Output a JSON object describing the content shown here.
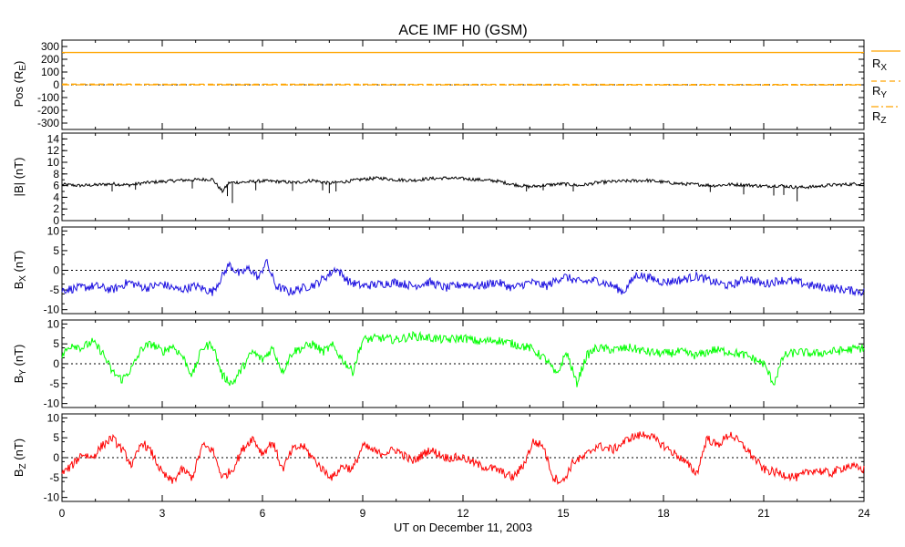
{
  "title": "ACE IMF H0 (GSM)",
  "xlabel": "UT on December 11, 2003",
  "x_ticks": [
    "0",
    "3",
    "6",
    "9",
    "12",
    "15",
    "18",
    "21",
    "24"
  ],
  "xlim": [
    0,
    24
  ],
  "chart_data": [
    {
      "type": "line",
      "panel": "pos",
      "ylabel_main": "Pos (R",
      "ylabel_sub": "E",
      "ylabel_tail": ")",
      "ylim": [
        -350,
        350
      ],
      "y_ticks": [
        "-300",
        "-200",
        "-100",
        "0",
        "100",
        "200",
        "300"
      ],
      "y_tick_values": [
        -300,
        -200,
        -100,
        0,
        100,
        200,
        300
      ],
      "zero_line": true,
      "series": [
        {
          "name": "RX",
          "label_main": "R",
          "label_sub": "X",
          "style": "solid",
          "color": "#ffa500",
          "x": [
            0,
            24
          ],
          "y": [
            253,
            253
          ]
        },
        {
          "name": "RY",
          "label_main": "R",
          "label_sub": "Y",
          "style": "dashed",
          "color": "#ffa500",
          "x": [
            0,
            24
          ],
          "y": [
            5,
            2
          ]
        },
        {
          "name": "RZ",
          "label_main": "R",
          "label_sub": "Z",
          "style": "dashdot",
          "color": "#ffa500",
          "x": [
            0,
            24
          ],
          "y": [
            0,
            -2
          ]
        }
      ]
    },
    {
      "type": "line",
      "panel": "bt",
      "ylabel_main": "|B| (nT)",
      "ylim": [
        0,
        15
      ],
      "y_ticks": [
        "0",
        "2",
        "4",
        "6",
        "8",
        "10",
        "12",
        "14"
      ],
      "y_tick_values": [
        0,
        2,
        4,
        6,
        8,
        10,
        12,
        14
      ],
      "zero_line": false,
      "color": "#000000",
      "x": [
        0,
        0.5,
        1,
        1.5,
        2,
        2.5,
        3,
        3.5,
        4,
        4.5,
        4.8,
        5,
        5.5,
        6,
        6.5,
        7,
        7.5,
        8,
        8.5,
        9,
        9.5,
        10,
        10.5,
        11,
        11.5,
        12,
        12.5,
        13,
        13.5,
        14,
        14.5,
        15,
        15.5,
        16,
        16.5,
        17,
        17.5,
        18,
        18.5,
        19,
        19.5,
        20,
        20.5,
        21,
        21.5,
        22,
        22.5,
        23,
        23.5,
        24
      ],
      "y": [
        6.2,
        6.0,
        6.1,
        6.3,
        6.1,
        6.5,
        6.7,
        6.9,
        7.0,
        7.1,
        5.0,
        6.5,
        6.6,
        6.8,
        6.7,
        6.5,
        6.9,
        6.4,
        6.7,
        7.1,
        7.3,
        7.0,
        6.9,
        7.2,
        7.3,
        7.2,
        7.0,
        6.8,
        6.2,
        5.8,
        6.1,
        6.3,
        6.0,
        6.5,
        6.7,
        6.8,
        6.9,
        6.6,
        6.3,
        6.2,
        6.0,
        6.2,
        6.1,
        5.9,
        6.0,
        5.7,
        5.8,
        6.1,
        6.2,
        6.4
      ],
      "spikes_x": [
        1.5,
        2.2,
        3.9,
        4.95,
        5.1,
        5.8,
        6.9,
        7.8,
        8.0,
        8.2,
        13.9,
        14.4,
        15.3,
        19.4,
        20.4,
        21.3,
        21.6,
        22.0
      ],
      "spikes_y": [
        5.0,
        5.3,
        5.5,
        4.2,
        3.0,
        5.2,
        5.1,
        5.2,
        4.7,
        5.0,
        5.0,
        5.2,
        5.0,
        4.9,
        4.5,
        4.3,
        4.4,
        3.3
      ]
    },
    {
      "type": "line",
      "panel": "bx",
      "ylabel_main": "B",
      "ylabel_sub": "X",
      "ylabel_tail": " (nT)",
      "ylim": [
        -11,
        11
      ],
      "y_ticks": [
        "-10",
        "-5",
        "0",
        "5",
        "10"
      ],
      "y_tick_values": [
        -10,
        -5,
        0,
        5,
        10
      ],
      "zero_line": true,
      "color": "#1c10e0",
      "x": [
        0,
        0.5,
        1,
        1.5,
        2,
        2.5,
        3,
        3.5,
        4,
        4.5,
        4.8,
        5,
        5.3,
        5.6,
        5.9,
        6.1,
        6.4,
        6.8,
        7.2,
        7.6,
        8.0,
        8.2,
        8.6,
        9,
        9.5,
        10,
        10.5,
        11,
        11.5,
        12,
        12.5,
        13,
        13.5,
        14,
        14.5,
        15,
        15.5,
        16,
        16.5,
        16.8,
        17.2,
        17.6,
        18,
        18.5,
        19,
        19.5,
        20,
        20.5,
        21,
        21.5,
        22,
        22.5,
        23,
        23.5,
        24
      ],
      "y": [
        -5,
        -4.5,
        -4,
        -5,
        -3,
        -4.5,
        -3.5,
        -5,
        -4,
        -5.5,
        -1.5,
        1.5,
        -1,
        0.5,
        -2,
        2.5,
        -4,
        -5.5,
        -4.5,
        -3.5,
        -1,
        0.5,
        -3,
        -4,
        -3.5,
        -3,
        -4,
        -3,
        -4.5,
        -3.5,
        -4,
        -3,
        -4.5,
        -3,
        -4,
        -1.5,
        -3,
        -2.5,
        -4,
        -5.5,
        -1,
        -2,
        -3,
        -2.5,
        -1.5,
        -3,
        -4,
        -2,
        -3.5,
        -2.5,
        -3,
        -4,
        -4.5,
        -5,
        -5.5
      ]
    },
    {
      "type": "line",
      "panel": "by",
      "ylabel_main": "B",
      "ylabel_sub": "Y",
      "ylabel_tail": " (nT)",
      "ylim": [
        -11,
        11
      ],
      "y_ticks": [
        "-10",
        "-5",
        "0",
        "5",
        "10"
      ],
      "y_tick_values": [
        -10,
        -5,
        0,
        5,
        10
      ],
      "zero_line": true,
      "color": "#00ff00",
      "x": [
        0,
        0.3,
        0.6,
        0.9,
        1.2,
        1.5,
        1.8,
        2.1,
        2.4,
        2.7,
        3,
        3.3,
        3.6,
        3.9,
        4.2,
        4.5,
        4.8,
        5.1,
        5.4,
        5.7,
        6,
        6.3,
        6.6,
        6.9,
        7.2,
        7.5,
        7.8,
        8.1,
        8.4,
        8.7,
        9,
        9.5,
        10,
        10.5,
        11,
        11.5,
        12,
        12.5,
        13,
        13.5,
        14,
        14.5,
        14.8,
        15.1,
        15.4,
        15.7,
        16,
        16.5,
        17,
        17.5,
        18,
        18.5,
        19,
        19.5,
        20,
        20.5,
        21,
        21.3,
        21.6,
        22,
        22.5,
        23,
        23.5,
        24
      ],
      "y": [
        2,
        5,
        4,
        5.5,
        3,
        -2,
        -4,
        -1,
        4,
        5,
        3,
        4.5,
        2,
        -3,
        4,
        5,
        -3,
        -5,
        -1,
        3,
        1,
        4,
        -2,
        3,
        4,
        5,
        3,
        4.5,
        1,
        -2,
        6,
        6.5,
        6,
        7,
        6.5,
        6,
        6.5,
        5.5,
        6,
        5,
        4,
        1,
        -3,
        3,
        -5,
        2,
        4,
        3.5,
        4,
        3,
        2.5,
        3,
        2,
        3.5,
        3,
        2,
        0,
        -5,
        2,
        3,
        2.5,
        3,
        3.5,
        4
      ]
    },
    {
      "type": "line",
      "panel": "bz",
      "ylabel_main": "B",
      "ylabel_sub": "Z",
      "ylabel_tail": " (nT)",
      "ylim": [
        -11,
        11
      ],
      "y_ticks": [
        "-10",
        "-5",
        "0",
        "5",
        "10"
      ],
      "y_tick_values": [
        -10,
        -5,
        0,
        5,
        10
      ],
      "zero_line": true,
      "color": "#ff0000",
      "x": [
        0,
        0.3,
        0.6,
        0.9,
        1.2,
        1.5,
        1.8,
        2.1,
        2.4,
        2.7,
        3,
        3.3,
        3.6,
        3.9,
        4.2,
        4.5,
        4.8,
        5.1,
        5.4,
        5.7,
        6,
        6.3,
        6.6,
        6.9,
        7.2,
        7.5,
        7.8,
        8.1,
        8.4,
        8.7,
        9,
        9.5,
        10,
        10.5,
        11,
        11.5,
        12,
        12.5,
        13,
        13.5,
        13.8,
        14.1,
        14.4,
        14.7,
        15,
        15.3,
        15.6,
        16,
        16.5,
        17,
        17.5,
        18,
        18.5,
        19,
        19.3,
        19.6,
        20,
        20.5,
        21,
        21.5,
        22,
        22.5,
        23,
        23.5,
        24
      ],
      "y": [
        -4,
        -2,
        1,
        0,
        3,
        5,
        2,
        -2,
        4,
        1,
        -4,
        -6,
        -3,
        -5,
        3,
        2,
        -5,
        -3,
        2,
        5,
        1,
        4,
        -3,
        2,
        3,
        0,
        -3,
        -5,
        -2,
        -3,
        3,
        1,
        2,
        -1,
        2,
        0,
        0,
        -2,
        -3,
        -5,
        -2,
        4,
        3,
        -5,
        -6,
        -1,
        0,
        3,
        2,
        5,
        6,
        3,
        0,
        -4,
        5,
        3,
        6,
        2,
        -3,
        -4,
        -5,
        -3,
        -4,
        -2,
        -3
      ]
    }
  ]
}
